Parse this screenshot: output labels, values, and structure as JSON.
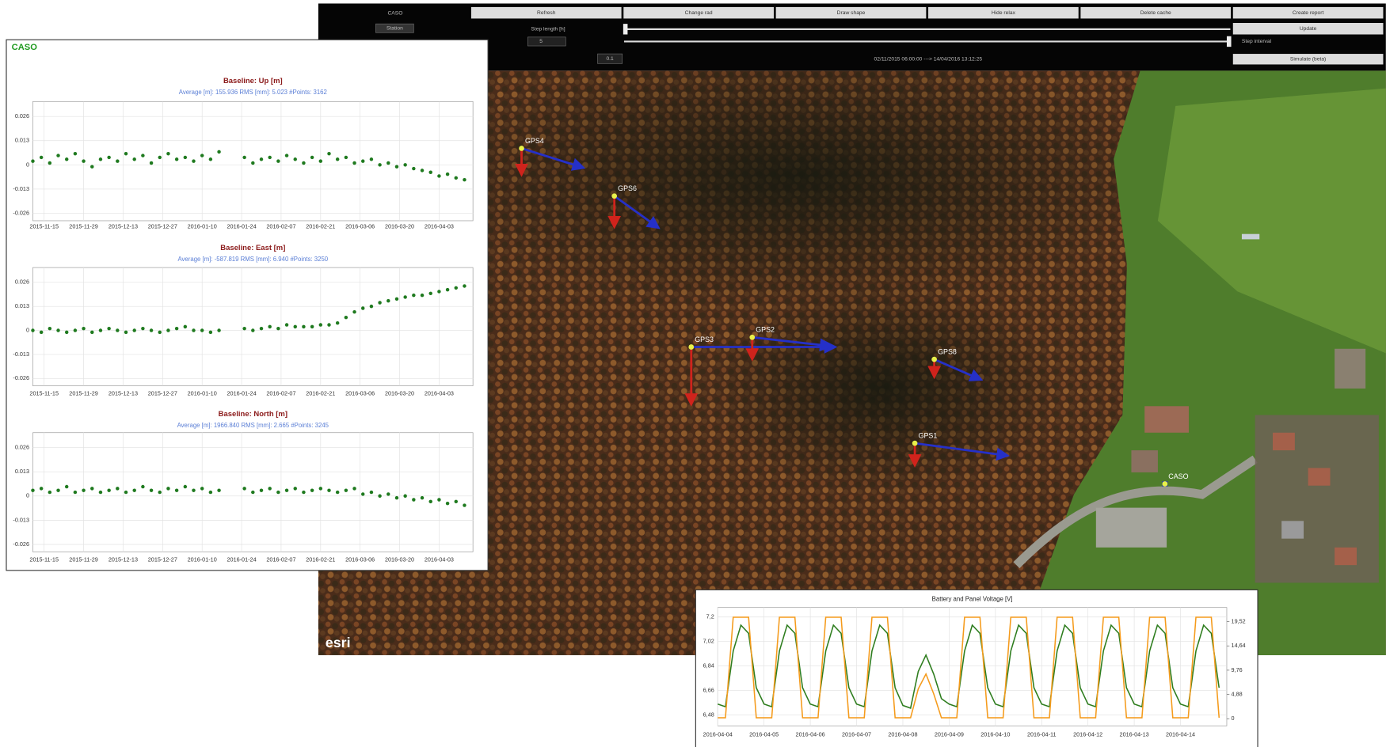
{
  "toolbar": {
    "station_title": "CASO",
    "station_button": "Station",
    "step_length_label": "Step length [h]",
    "step_length_value": "5",
    "step_interval_label": "Step interval",
    "speed_value": "0.1",
    "time_range": "02/11/2015 06:00:00 ---> 14/04/2016 13:12:25",
    "buttons": [
      "Refresh",
      "Change rad",
      "Draw shape",
      "Hide relax",
      "Delete cache",
      "Create report"
    ],
    "update_button": "Update",
    "simulate_button": "Simulate (beta)"
  },
  "map": {
    "markers": [
      "GPS4",
      "GPS6",
      "GPS3",
      "GPS2",
      "GPS8",
      "GPS1",
      "CASO"
    ],
    "attribution": "esri"
  },
  "panel_title": "CASO",
  "chart_data": [
    {
      "type": "scatter",
      "title": "Baseline: Up [m]",
      "subtitle": "Average [m]: 155.936 RMS [mm]: 5.023 #Points: 3162",
      "x": [
        "2015-11-11",
        "2015-11-14",
        "2015-11-17",
        "2015-11-20",
        "2015-11-23",
        "2015-11-26",
        "2015-11-29",
        "2015-12-02",
        "2015-12-05",
        "2015-12-08",
        "2015-12-11",
        "2015-12-14",
        "2015-12-17",
        "2015-12-20",
        "2015-12-23",
        "2015-12-26",
        "2015-12-29",
        "2016-01-01",
        "2016-01-04",
        "2016-01-07",
        "2016-01-10",
        "2016-01-13",
        "2016-01-16",
        "2016-01-25",
        "2016-01-28",
        "2016-01-31",
        "2016-02-03",
        "2016-02-06",
        "2016-02-09",
        "2016-02-12",
        "2016-02-15",
        "2016-02-18",
        "2016-02-21",
        "2016-02-24",
        "2016-02-27",
        "2016-03-01",
        "2016-03-04",
        "2016-03-07",
        "2016-03-10",
        "2016-03-13",
        "2016-03-16",
        "2016-03-19",
        "2016-03-22",
        "2016-03-25",
        "2016-03-28",
        "2016-03-31",
        "2016-04-03",
        "2016-04-06",
        "2016-04-09",
        "2016-04-12"
      ],
      "series": [
        {
          "color": "#1f7a1f",
          "values": [
            0.002,
            0.004,
            0.001,
            0.005,
            0.003,
            0.006,
            0.002,
            -0.001,
            0.003,
            0.004,
            0.002,
            0.006,
            0.003,
            0.005,
            0.001,
            0.004,
            0.006,
            0.003,
            0.004,
            0.002,
            0.005,
            0.003,
            0.007,
            0.004,
            0.001,
            0.003,
            0.004,
            0.002,
            0.005,
            0.003,
            0.001,
            0.004,
            0.002,
            0.006,
            0.003,
            0.004,
            0.001,
            0.002,
            0.003,
            0,
            0.001,
            -0.001,
            0,
            -0.002,
            -0.003,
            -0.004,
            -0.006,
            -0.005,
            -0.007,
            -0.008
          ]
        }
      ],
      "xlim": [
        "2015-11-11",
        "2016-04-15"
      ],
      "xticks": [
        "2015-11-15",
        "2015-11-29",
        "2015-12-13",
        "2015-12-27",
        "2016-01-10",
        "2016-01-24",
        "2016-02-07",
        "2016-02-21",
        "2016-03-06",
        "2016-03-20",
        "2016-04-03"
      ],
      "ylim": [
        -0.03,
        0.034
      ],
      "yticks": [
        0.026,
        0.013,
        0,
        -0.013,
        -0.026
      ],
      "grid": true
    },
    {
      "type": "scatter",
      "title": "Baseline: East [m]",
      "subtitle": "Average [m]: -587.819 RMS [mm]: 6.940 #Points: 3250",
      "x": [
        "2015-11-11",
        "2015-11-14",
        "2015-11-17",
        "2015-11-20",
        "2015-11-23",
        "2015-11-26",
        "2015-11-29",
        "2015-12-02",
        "2015-12-05",
        "2015-12-08",
        "2015-12-11",
        "2015-12-14",
        "2015-12-17",
        "2015-12-20",
        "2015-12-23",
        "2015-12-26",
        "2015-12-29",
        "2016-01-01",
        "2016-01-04",
        "2016-01-07",
        "2016-01-10",
        "2016-01-13",
        "2016-01-16",
        "2016-01-25",
        "2016-01-28",
        "2016-01-31",
        "2016-02-03",
        "2016-02-06",
        "2016-02-09",
        "2016-02-12",
        "2016-02-15",
        "2016-02-18",
        "2016-02-21",
        "2016-02-24",
        "2016-02-27",
        "2016-03-01",
        "2016-03-04",
        "2016-03-07",
        "2016-03-10",
        "2016-03-13",
        "2016-03-16",
        "2016-03-19",
        "2016-03-22",
        "2016-03-25",
        "2016-03-28",
        "2016-03-31",
        "2016-04-03",
        "2016-04-06",
        "2016-04-09",
        "2016-04-12"
      ],
      "series": [
        {
          "color": "#1f7a1f",
          "values": [
            0,
            -0.001,
            0.001,
            0,
            -0.001,
            0,
            0.001,
            -0.001,
            0,
            0.001,
            0,
            -0.001,
            0,
            0.001,
            0,
            -0.001,
            0,
            0.001,
            0.002,
            0,
            0,
            -0.001,
            0,
            0.001,
            0,
            0.001,
            0.002,
            0.001,
            0.003,
            0.002,
            0.002,
            0.002,
            0.003,
            0.003,
            0.004,
            0.007,
            0.01,
            0.012,
            0.013,
            0.015,
            0.016,
            0.017,
            0.018,
            0.019,
            0.019,
            0.02,
            0.021,
            0.022,
            0.023,
            0.024
          ]
        }
      ],
      "xlim": [
        "2015-11-11",
        "2016-04-15"
      ],
      "xticks": [
        "2015-11-15",
        "2015-11-29",
        "2015-12-13",
        "2015-12-27",
        "2016-01-10",
        "2016-01-24",
        "2016-02-07",
        "2016-02-21",
        "2016-03-06",
        "2016-03-20",
        "2016-04-03"
      ],
      "ylim": [
        -0.03,
        0.034
      ],
      "yticks": [
        0.026,
        0.013,
        0,
        -0.013,
        -0.026
      ],
      "grid": true
    },
    {
      "type": "scatter",
      "title": "Baseline: North [m]",
      "subtitle": "Average [m]: 1966.840 RMS [mm]: 2.665 #Points: 3245",
      "x": [
        "2015-11-11",
        "2015-11-14",
        "2015-11-17",
        "2015-11-20",
        "2015-11-23",
        "2015-11-26",
        "2015-11-29",
        "2015-12-02",
        "2015-12-05",
        "2015-12-08",
        "2015-12-11",
        "2015-12-14",
        "2015-12-17",
        "2015-12-20",
        "2015-12-23",
        "2015-12-26",
        "2015-12-29",
        "2016-01-01",
        "2016-01-04",
        "2016-01-07",
        "2016-01-10",
        "2016-01-13",
        "2016-01-16",
        "2016-01-25",
        "2016-01-28",
        "2016-01-31",
        "2016-02-03",
        "2016-02-06",
        "2016-02-09",
        "2016-02-12",
        "2016-02-15",
        "2016-02-18",
        "2016-02-21",
        "2016-02-24",
        "2016-02-27",
        "2016-03-01",
        "2016-03-04",
        "2016-03-07",
        "2016-03-10",
        "2016-03-13",
        "2016-03-16",
        "2016-03-19",
        "2016-03-22",
        "2016-03-25",
        "2016-03-28",
        "2016-03-31",
        "2016-04-03",
        "2016-04-06",
        "2016-04-09",
        "2016-04-12"
      ],
      "series": [
        {
          "color": "#1f7a1f",
          "values": [
            0.003,
            0.004,
            0.002,
            0.003,
            0.005,
            0.002,
            0.003,
            0.004,
            0.002,
            0.003,
            0.004,
            0.002,
            0.003,
            0.005,
            0.003,
            0.002,
            0.004,
            0.003,
            0.005,
            0.003,
            0.004,
            0.002,
            0.003,
            0.004,
            0.002,
            0.003,
            0.004,
            0.002,
            0.003,
            0.004,
            0.002,
            0.003,
            0.004,
            0.003,
            0.002,
            0.003,
            0.004,
            0.001,
            0.002,
            0,
            0.001,
            -0.001,
            0,
            -0.002,
            -0.001,
            -0.003,
            -0.002,
            -0.004,
            -0.003,
            -0.005
          ]
        }
      ],
      "xlim": [
        "2015-11-11",
        "2016-04-15"
      ],
      "xticks": [
        "2015-11-15",
        "2015-11-29",
        "2015-12-13",
        "2015-12-27",
        "2016-01-10",
        "2016-01-24",
        "2016-02-07",
        "2016-02-21",
        "2016-03-06",
        "2016-03-20",
        "2016-04-03"
      ],
      "ylim": [
        -0.03,
        0.034
      ],
      "yticks": [
        0.026,
        0.013,
        0,
        -0.013,
        -0.026
      ],
      "grid": true
    },
    {
      "type": "line",
      "title": "Battery and Panel Voltage [V]",
      "xlim": [
        "2016-04-04",
        "2016-04-15"
      ],
      "xticks": [
        "2016-04-04",
        "2016-04-05",
        "2016-04-06",
        "2016-04-07",
        "2016-04-08",
        "2016-04-09",
        "2016-04-10",
        "2016-04-11",
        "2016-04-12",
        "2016-04-13",
        "2016-04-14"
      ],
      "ylim": [
        6.4,
        7.27
      ],
      "yticks": [
        {
          "value": 7.2,
          "label": "7,2"
        },
        {
          "value": 7.02,
          "label": "7,02"
        },
        {
          "value": 6.84,
          "label": "6,84"
        },
        {
          "value": 6.66,
          "label": "6,66"
        },
        {
          "value": 6.48,
          "label": "6,48"
        }
      ],
      "y2lim": [
        -1.42,
        22.36
      ],
      "y2ticks": [
        {
          "value": 19.52,
          "label": "19,52"
        },
        {
          "value": 14.64,
          "label": "14,64"
        },
        {
          "value": 9.76,
          "label": "9,76"
        },
        {
          "value": 4.88,
          "label": "4,88"
        },
        0
      ],
      "grid": true,
      "series": [
        {
          "color": "#2e7d1e",
          "values": [
            6.56,
            6.54,
            6.95,
            7.14,
            7.08,
            6.68,
            6.56,
            6.54,
            6.95,
            7.14,
            7.08,
            6.68,
            6.56,
            6.54,
            6.95,
            7.14,
            7.08,
            6.68,
            6.56,
            6.54,
            6.95,
            7.14,
            7.08,
            6.68,
            6.55,
            6.53,
            6.8,
            6.92,
            6.78,
            6.6,
            6.56,
            6.54,
            6.95,
            7.14,
            7.08,
            6.68,
            6.56,
            6.54,
            6.95,
            7.14,
            7.08,
            6.68,
            6.56,
            6.54,
            6.95,
            7.14,
            7.08,
            6.68,
            6.56,
            6.54,
            6.95,
            7.14,
            7.08,
            6.68,
            6.56,
            6.54,
            6.95,
            7.14,
            7.08,
            6.68,
            6.56,
            6.54,
            6.95,
            7.14,
            7.08,
            6.68
          ]
        },
        {
          "color": "#f59b1c",
          "axis": "y2",
          "values": [
            0.2,
            0.2,
            20.4,
            20.4,
            20.4,
            0.2,
            0.2,
            0.2,
            20.4,
            20.4,
            20.4,
            0.2,
            0.2,
            0.2,
            20.4,
            20.4,
            20.4,
            0.2,
            0.2,
            0.2,
            20.4,
            20.4,
            20.4,
            0.2,
            0.2,
            0.2,
            6,
            9,
            5,
            0.2,
            0.2,
            0.2,
            20.4,
            20.4,
            20.4,
            0.2,
            0.2,
            0.2,
            20.4,
            20.4,
            20.4,
            0.2,
            0.2,
            0.2,
            20.4,
            20.4,
            20.4,
            0.2,
            0.2,
            0.2,
            20.4,
            20.4,
            20.4,
            0.2,
            0.2,
            0.2,
            20.4,
            20.4,
            20.4,
            0.2,
            0.2,
            0.2,
            20.4,
            20.4,
            20.4,
            0.2
          ]
        }
      ]
    }
  ]
}
